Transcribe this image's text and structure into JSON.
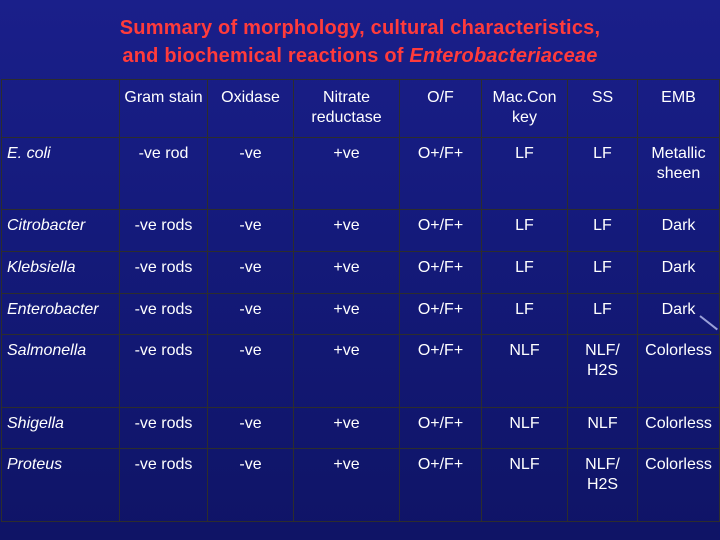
{
  "title": {
    "line1": "Summary of  morphology, cultural characteristics,",
    "line2_prefix": "and biochemical reactions of ",
    "line2_italic": "Enterobacteriaceae"
  },
  "table": {
    "headers": [
      "",
      "Gram stain",
      "Oxidase",
      "Nitrate reductase",
      "O/F",
      "Mac.Con key",
      "SS",
      "EMB"
    ],
    "rows": [
      {
        "organism": "E. coli",
        "cells": [
          "-ve rod",
          "-ve",
          "+ve",
          "O+/F+",
          "LF",
          "LF",
          "Metallic sheen"
        ]
      },
      {
        "organism": "Citrobacter",
        "cells": [
          "-ve rods",
          "-ve",
          "+ve",
          "O+/F+",
          "LF",
          "LF",
          "Dark"
        ]
      },
      {
        "organism": "Klebsiella",
        "cells": [
          "-ve rods",
          "-ve",
          "+ve",
          "O+/F+",
          "LF",
          "LF",
          "Dark"
        ]
      },
      {
        "organism": "Enterobacter",
        "cells": [
          "-ve rods",
          "-ve",
          "+ve",
          "O+/F+",
          "LF",
          "LF",
          "Dark"
        ]
      },
      {
        "organism": "Salmonella",
        "cells": [
          "-ve rods",
          "-ve",
          "+ve",
          "O+/F+",
          "NLF",
          "NLF/ H2S",
          "Colorless"
        ]
      },
      {
        "organism": "Shigella",
        "cells": [
          "-ve rods",
          "-ve",
          "+ve",
          "O+/F+",
          "NLF",
          "NLF",
          "Colorless"
        ]
      },
      {
        "organism": "Proteus",
        "cells": [
          "-ve rods",
          "-ve",
          "+ve",
          "O+/F+",
          "NLF",
          "NLF/ H2S",
          "Colorless"
        ]
      }
    ]
  },
  "colors": {
    "title": "#ff3b3b",
    "background": "#141a7a",
    "text": "#ffffff",
    "grid_lines": "#2d2d2d"
  }
}
